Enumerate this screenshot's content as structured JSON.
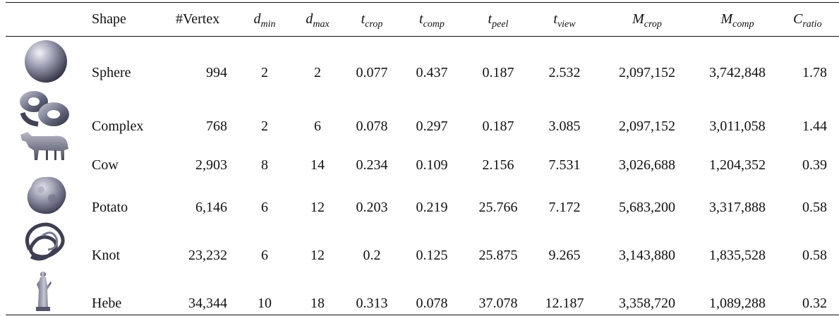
{
  "table": {
    "headers": [
      {
        "key": "shape",
        "main": "Shape",
        "sub": ""
      },
      {
        "key": "vertex",
        "main": "#Vertex",
        "sub": ""
      },
      {
        "key": "dmin",
        "main": "d",
        "sub": "min"
      },
      {
        "key": "dmax",
        "main": "d",
        "sub": "max"
      },
      {
        "key": "tcrop",
        "main": "t",
        "sub": "crop"
      },
      {
        "key": "tcomp",
        "main": "t",
        "sub": "comp"
      },
      {
        "key": "tpeel",
        "main": "t",
        "sub": "peel"
      },
      {
        "key": "tview",
        "main": "t",
        "sub": "view"
      },
      {
        "key": "mcrop",
        "main": "M",
        "sub": "crop"
      },
      {
        "key": "mcomp",
        "main": "M",
        "sub": "comp"
      },
      {
        "key": "cratio",
        "main": "C",
        "sub": "ratio"
      }
    ],
    "rows": [
      {
        "icon": "sphere-icon",
        "cells": [
          "Sphere",
          "994",
          "2",
          "2",
          "0.077",
          "0.437",
          "0.187",
          "2.532",
          "2,097,152",
          "3,742,848",
          "1.78"
        ]
      },
      {
        "icon": "complex-shape-icon",
        "cells": [
          "Complex",
          "768",
          "2",
          "6",
          "0.078",
          "0.297",
          "0.187",
          "3.085",
          "2,097,152",
          "3,011,058",
          "1.44"
        ]
      },
      {
        "icon": "cow-icon",
        "cells": [
          "Cow",
          "2,903",
          "8",
          "14",
          "0.234",
          "0.109",
          "2.156",
          "7.531",
          "3,026,688",
          "1,204,352",
          "0.39"
        ]
      },
      {
        "icon": "potato-icon",
        "cells": [
          "Potato",
          "6,146",
          "6",
          "12",
          "0.203",
          "0.219",
          "25.766",
          "7.172",
          "5,683,200",
          "3,317,888",
          "0.58"
        ]
      },
      {
        "icon": "knot-icon",
        "cells": [
          "Knot",
          "23,232",
          "6",
          "12",
          "0.2",
          "0.125",
          "25.875",
          "9.265",
          "3,143,880",
          "1,835,528",
          "0.58"
        ]
      },
      {
        "icon": "hebe-statue-icon",
        "cells": [
          "Hebe",
          "34,344",
          "10",
          "18",
          "0.313",
          "0.078",
          "37.078",
          "12.187",
          "3,358,720",
          "1,089,288",
          "0.32"
        ]
      }
    ]
  }
}
